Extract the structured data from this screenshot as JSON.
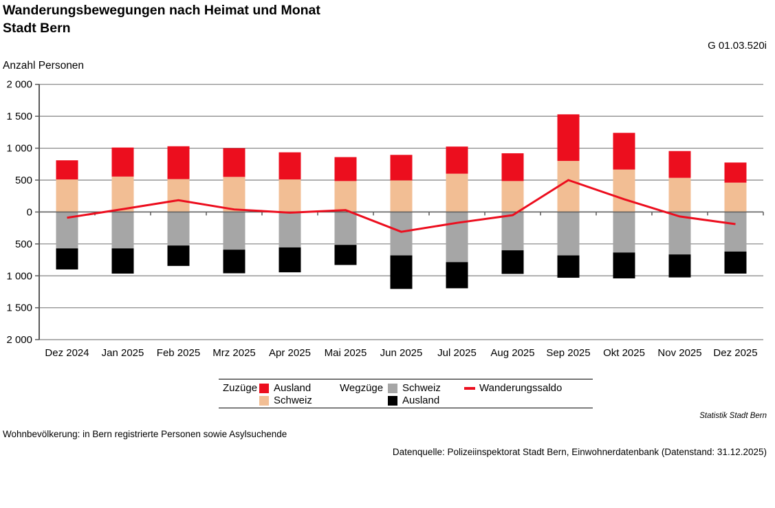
{
  "header": {
    "title": "Wanderungsbewegungen nach Heimat und Monat",
    "subtitle": "Stadt Bern",
    "chart_id": "G 01.03.520i",
    "axis_unit_label": "Anzahl Personen"
  },
  "chart_data": {
    "type": "bar",
    "subtype": "diverging-stacked-bars-with-line",
    "title": "Wanderungsbewegungen nach Heimat und Monat",
    "ylabel": "Anzahl Personen",
    "ylim": [
      -2000,
      2000
    ],
    "ytick_interval": 500,
    "ytick_labels_top_to_bottom": [
      "2 000",
      "1 500",
      "1 000",
      "500",
      "0",
      "500",
      "1 000",
      "1 500",
      "2 000"
    ],
    "grid": true,
    "legend_position": "bottom",
    "categories": [
      "Dez 2024",
      "Jan 2025",
      "Feb 2025",
      "Mrz 2025",
      "Apr 2025",
      "Mai 2025",
      "Jun 2025",
      "Jul 2025",
      "Aug 2025",
      "Sep 2025",
      "Okt 2025",
      "Nov 2025",
      "Dez 2025"
    ],
    "series": [
      {
        "name": "Zuzüge Schweiz",
        "role": "bar-positive",
        "stack_order": 1,
        "color": "#F2BE94",
        "values": [
          510,
          555,
          515,
          550,
          510,
          485,
          495,
          600,
          485,
          800,
          665,
          535,
          460
        ]
      },
      {
        "name": "Zuzüge Ausland",
        "role": "bar-positive",
        "stack_order": 2,
        "color": "#EC0E1E",
        "values": [
          300,
          455,
          515,
          450,
          425,
          375,
          400,
          425,
          435,
          730,
          575,
          420,
          315
        ]
      },
      {
        "name": "Wegzüge Schweiz",
        "role": "bar-negative",
        "stack_order": 1,
        "color": "#A6A6A6",
        "values": [
          570,
          570,
          525,
          590,
          555,
          515,
          680,
          785,
          600,
          680,
          635,
          665,
          620
        ]
      },
      {
        "name": "Wegzüge Ausland",
        "role": "bar-negative",
        "stack_order": 2,
        "color": "#000000",
        "values": [
          330,
          395,
          320,
          370,
          390,
          315,
          525,
          410,
          370,
          350,
          405,
          360,
          345
        ]
      },
      {
        "name": "Wanderungssaldo",
        "role": "line",
        "color": "#EC0E1E",
        "values": [
          -90,
          45,
          185,
          40,
          -10,
          30,
          -310,
          -170,
          -50,
          500,
          200,
          -70,
          -190
        ]
      }
    ],
    "colors": {
      "grid": "#808080",
      "axis": "#595959",
      "accent_red": "#EC0E1E"
    }
  },
  "legend": {
    "zuzuege_label": "Zuzüge",
    "wegzuege_label": "Wegzüge",
    "zuzuege_ausland": "Ausland",
    "zuzuege_schweiz": "Schweiz",
    "wegzuege_schweiz": "Schweiz",
    "wegzuege_ausland": "Ausland",
    "saldo_label": "Wanderungssaldo"
  },
  "footer": {
    "brand": "Statistik Stadt Bern",
    "note": "Wohnbevölkerung: in Bern registrierte Personen sowie Asylsuchende",
    "source": "Datenquelle: Polizeiinspektorat Stadt Bern, Einwohnerdatenbank (Datenstand: 31.12.2025)"
  }
}
